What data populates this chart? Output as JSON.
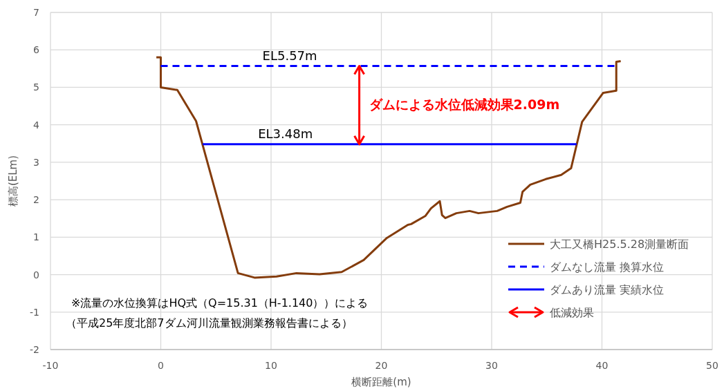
{
  "chart_data": {
    "type": "line",
    "xlabel": "横断距離(m)",
    "ylabel": "標高(ELm)",
    "xlim": [
      -10,
      50
    ],
    "ylim": [
      -2,
      7
    ],
    "xticks": [
      -10,
      0,
      10,
      20,
      30,
      40,
      50
    ],
    "yticks": [
      -2,
      -1,
      0,
      1,
      2,
      3,
      4,
      5,
      6,
      7
    ],
    "grid": true,
    "legend": "bottom right",
    "series": [
      {
        "name": "大工又橋H25.5.28測量断面",
        "color": "#843c0c",
        "line_style": "solid",
        "x": [
          -0.4,
          0,
          0,
          1.5,
          3.2,
          7.0,
          8.5,
          10.5,
          12.3,
          14.4,
          16.4,
          18.4,
          20.5,
          22.4,
          22.7,
          24.0,
          24.5,
          25.3,
          25.5,
          25.8,
          26.8,
          28.0,
          28.8,
          30.5,
          31.4,
          32.6,
          32.8,
          33.5,
          34.9,
          36.3,
          37.2,
          38.2,
          40.1,
          41.3,
          41.3,
          41.7
        ],
        "values": [
          5.8,
          5.8,
          5.0,
          4.93,
          4.1,
          0.04,
          -0.08,
          -0.05,
          0.04,
          0.01,
          0.07,
          0.39,
          0.98,
          1.33,
          1.35,
          1.57,
          1.77,
          1.96,
          1.59,
          1.51,
          1.64,
          1.7,
          1.64,
          1.7,
          1.81,
          1.92,
          2.21,
          2.4,
          2.55,
          2.66,
          2.84,
          4.08,
          4.85,
          4.91,
          5.68,
          5.7
        ]
      },
      {
        "name": "ダムなし流量 換算水位",
        "color": "#0000ff",
        "line_style": "dashed",
        "x": [
          0,
          41.3
        ],
        "values": [
          5.57,
          5.57
        ]
      },
      {
        "name": "ダムあり流量 実績水位",
        "color": "#0000ff",
        "line_style": "solid",
        "x": [
          3.8,
          37.7
        ],
        "values": [
          3.48,
          3.48
        ]
      },
      {
        "name": "低減効果",
        "color": "#ff0000",
        "line_style": "solid",
        "x": [
          18.0,
          18.0
        ],
        "values": [
          3.48,
          5.57
        ]
      }
    ],
    "annotations": [
      {
        "text": "EL5.57m",
        "x": 11.7,
        "y": 5.57
      },
      {
        "text": "EL3.48m",
        "x": 11.3,
        "y": 3.48
      },
      {
        "text": "ダムによる水位低減効果2.09m",
        "x": 18.0,
        "y": 4.54
      },
      "※流量の水位換算はHQ式（Q=15.31（H-1.140））による",
      "（平成25年度北部7ダム河川流量観測業務報告書による）"
    ]
  }
}
